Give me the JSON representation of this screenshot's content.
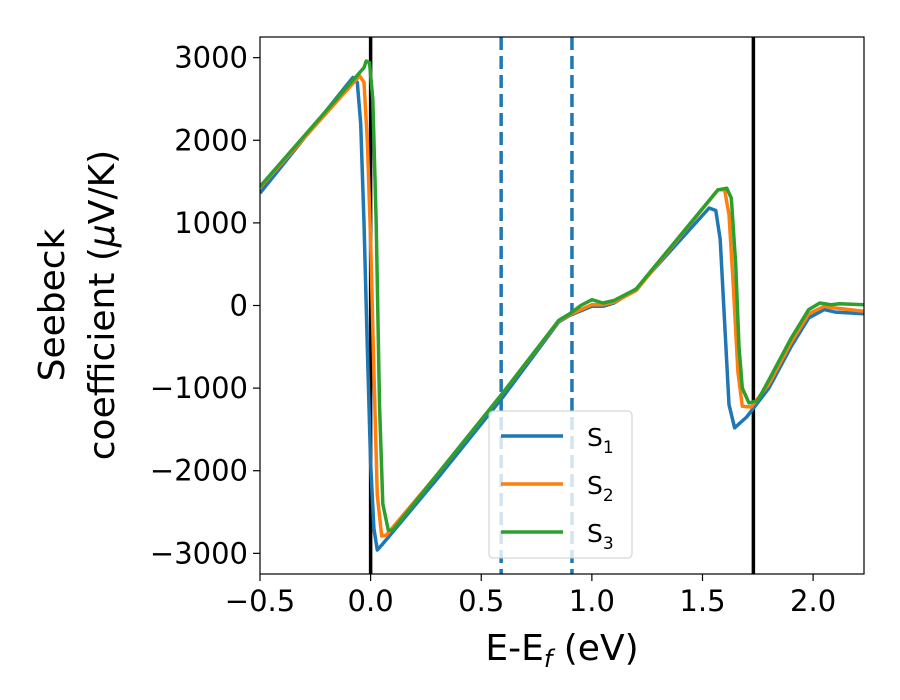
{
  "chart_data": {
    "type": "line",
    "title": "",
    "xlabel": "E-E",
    "xlabel_sub": "f",
    "xlabel_unit": " (eV)",
    "ylabel_line1": "Seebeck",
    "ylabel_line2_prefix": "coefficient  (",
    "ylabel_mu": "μ",
    "ylabel_line2_suffix": "V/K)",
    "xlim": [
      -0.5,
      2.23
    ],
    "ylim": [
      -3250,
      3250
    ],
    "xticks": [
      -0.5,
      0.0,
      0.5,
      1.0,
      1.5,
      2.0
    ],
    "xtick_labels": [
      "−0.5",
      "0.0",
      "0.5",
      "1.0",
      "1.5",
      "2.0"
    ],
    "yticks": [
      3000,
      2000,
      1000,
      0,
      -1000,
      -2000,
      -3000
    ],
    "ytick_labels": [
      "3000",
      "2000",
      "1000",
      "0",
      "−1000",
      "−2000",
      "−3000"
    ],
    "vertical_lines": [
      {
        "x": 0.0,
        "style": "solid",
        "color": "#000000"
      },
      {
        "x": 1.73,
        "style": "solid",
        "color": "#000000"
      },
      {
        "x": 0.59,
        "style": "dashed",
        "color": "#1f77b4"
      },
      {
        "x": 0.91,
        "style": "dashed",
        "color": "#1f77b4"
      }
    ],
    "legend": {
      "placement": "lower-center"
    },
    "series": [
      {
        "name": "S",
        "sub": "1",
        "color": "#1f77b4",
        "points": [
          [
            -0.5,
            1360
          ],
          [
            -0.08,
            2760
          ],
          [
            -0.06,
            2700
          ],
          [
            -0.045,
            2200
          ],
          [
            -0.03,
            1000
          ],
          [
            -0.015,
            -500
          ],
          [
            0.0,
            -1900
          ],
          [
            0.015,
            -2700
          ],
          [
            0.03,
            -2960
          ],
          [
            0.05,
            -2900
          ],
          [
            0.3,
            -2100
          ],
          [
            0.6,
            -1100
          ],
          [
            0.85,
            -200
          ],
          [
            0.9,
            -120
          ],
          [
            1.0,
            -10
          ],
          [
            1.05,
            -10
          ],
          [
            1.1,
            30
          ],
          [
            1.2,
            200
          ],
          [
            1.53,
            1180
          ],
          [
            1.56,
            1150
          ],
          [
            1.58,
            800
          ],
          [
            1.6,
            -200
          ],
          [
            1.62,
            -1200
          ],
          [
            1.645,
            -1480
          ],
          [
            1.7,
            -1350
          ],
          [
            1.8,
            -1000
          ],
          [
            1.9,
            -500
          ],
          [
            1.98,
            -150
          ],
          [
            2.05,
            -50
          ],
          [
            2.1,
            -80
          ],
          [
            2.23,
            -100
          ]
        ]
      },
      {
        "name": "S",
        "sub": "2",
        "color": "#ff7f0e",
        "points": [
          [
            -0.5,
            1430
          ],
          [
            -0.05,
            2780
          ],
          [
            -0.03,
            2700
          ],
          [
            -0.015,
            2000
          ],
          [
            0.0,
            800
          ],
          [
            0.015,
            -800
          ],
          [
            0.03,
            -2300
          ],
          [
            0.05,
            -2790
          ],
          [
            0.07,
            -2780
          ],
          [
            0.3,
            -2050
          ],
          [
            0.6,
            -1050
          ],
          [
            0.85,
            -190
          ],
          [
            0.9,
            -110
          ],
          [
            1.0,
            10
          ],
          [
            1.05,
            10
          ],
          [
            1.1,
            40
          ],
          [
            1.2,
            180
          ],
          [
            1.57,
            1400
          ],
          [
            1.6,
            1400
          ],
          [
            1.62,
            1100
          ],
          [
            1.64,
            200
          ],
          [
            1.66,
            -800
          ],
          [
            1.68,
            -1220
          ],
          [
            1.72,
            -1230
          ],
          [
            1.8,
            -950
          ],
          [
            1.9,
            -450
          ],
          [
            1.98,
            -100
          ],
          [
            2.05,
            -10
          ],
          [
            2.1,
            -30
          ],
          [
            2.23,
            -70
          ]
        ]
      },
      {
        "name": "S",
        "sub": "3",
        "color": "#2ca02c",
        "points": [
          [
            -0.5,
            1440
          ],
          [
            -0.03,
            2880
          ],
          [
            -0.02,
            2960
          ],
          [
            -0.005,
            2940
          ],
          [
            0.01,
            2500
          ],
          [
            0.025,
            1000
          ],
          [
            0.04,
            -1200
          ],
          [
            0.055,
            -2400
          ],
          [
            0.08,
            -2720
          ],
          [
            0.1,
            -2720
          ],
          [
            0.3,
            -2050
          ],
          [
            0.6,
            -1050
          ],
          [
            0.85,
            -180
          ],
          [
            0.9,
            -100
          ],
          [
            0.95,
            0
          ],
          [
            1.0,
            70
          ],
          [
            1.05,
            30
          ],
          [
            1.1,
            60
          ],
          [
            1.2,
            200
          ],
          [
            1.57,
            1400
          ],
          [
            1.61,
            1420
          ],
          [
            1.63,
            1300
          ],
          [
            1.65,
            500
          ],
          [
            1.665,
            -500
          ],
          [
            1.68,
            -1000
          ],
          [
            1.71,
            -1180
          ],
          [
            1.75,
            -1150
          ],
          [
            1.8,
            -900
          ],
          [
            1.9,
            -400
          ],
          [
            1.98,
            -50
          ],
          [
            2.03,
            30
          ],
          [
            2.08,
            10
          ],
          [
            2.12,
            20
          ],
          [
            2.23,
            10
          ]
        ]
      }
    ]
  }
}
